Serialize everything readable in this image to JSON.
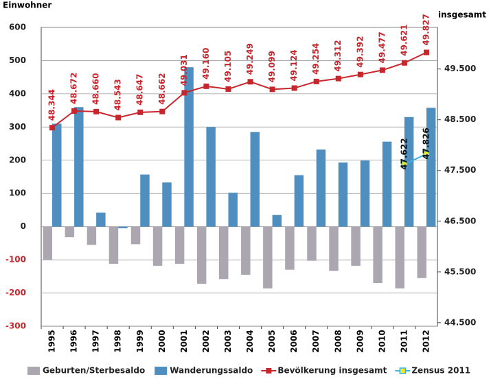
{
  "chart_data": {
    "type": "bar_line",
    "y_label": "Einwohner",
    "y2_label": "insgesamt",
    "categories": [
      "1995",
      "1996",
      "1997",
      "1998",
      "1999",
      "2000",
      "2001",
      "2002",
      "2003",
      "2004",
      "2005",
      "2006",
      "2007",
      "2008",
      "2009",
      "2010",
      "2011",
      "2012"
    ],
    "series": [
      {
        "name": "Geburten/Sterbesaldo",
        "type": "bar",
        "color": "#aba6b0",
        "values": [
          -100,
          -32,
          -55,
          -112,
          -53,
          -118,
          -112,
          -172,
          -158,
          -145,
          -186,
          -130,
          -103,
          -133,
          -118,
          -170,
          -186,
          -155
        ]
      },
      {
        "name": "Wanderungssaldo",
        "type": "bar",
        "color": "#4f8fc0",
        "values": [
          310,
          360,
          42,
          -5,
          157,
          133,
          480,
          300,
          102,
          285,
          35,
          155,
          232,
          193,
          199,
          256,
          330,
          358
        ]
      },
      {
        "name": "Bevölkerung insgesamt",
        "type": "line",
        "axis": "y2",
        "color": "#c8262c",
        "marker_color": "#c8262c",
        "values": [
          48344,
          48672,
          48660,
          48543,
          48647,
          48662,
          49031,
          49160,
          49105,
          49249,
          49099,
          49124,
          49254,
          49312,
          49392,
          49477,
          49621,
          49827
        ],
        "value_labels": [
          "48.344",
          "48.672",
          "48.660",
          "48.543",
          "48.647",
          "48.662",
          "49.031",
          "49.160",
          "49.105",
          "49.249",
          "49.099",
          "49.124",
          "49.254",
          "49.312",
          "49.392",
          "49.477",
          "49.621",
          "49.827"
        ]
      },
      {
        "name": "Zensus 2011",
        "type": "line",
        "axis": "y2",
        "color": "#3db0e0",
        "marker_color": "#f2ea1c",
        "values": [
          null,
          null,
          null,
          null,
          null,
          null,
          null,
          null,
          null,
          null,
          null,
          null,
          null,
          null,
          null,
          null,
          47622,
          47826
        ],
        "value_labels": [
          null,
          null,
          null,
          null,
          null,
          null,
          null,
          null,
          null,
          null,
          null,
          null,
          null,
          null,
          null,
          null,
          "47.622",
          "47.826"
        ]
      }
    ],
    "ylim": [
      -300,
      600
    ],
    "yticks": [
      -300,
      -200,
      -100,
      0,
      100,
      200,
      300,
      400,
      500,
      600
    ],
    "y2lim": [
      44430,
      50320
    ],
    "y2ticks": [
      {
        "value": 44500,
        "label": "44.500"
      },
      {
        "value": 45500,
        "label": "45.500"
      },
      {
        "value": 46500,
        "label": "46.500"
      },
      {
        "value": 47500,
        "label": "47.500"
      },
      {
        "value": 48500,
        "label": "48.500"
      },
      {
        "value": 49500,
        "label": "49.500"
      }
    ],
    "grid": true,
    "legend": "bottom"
  }
}
